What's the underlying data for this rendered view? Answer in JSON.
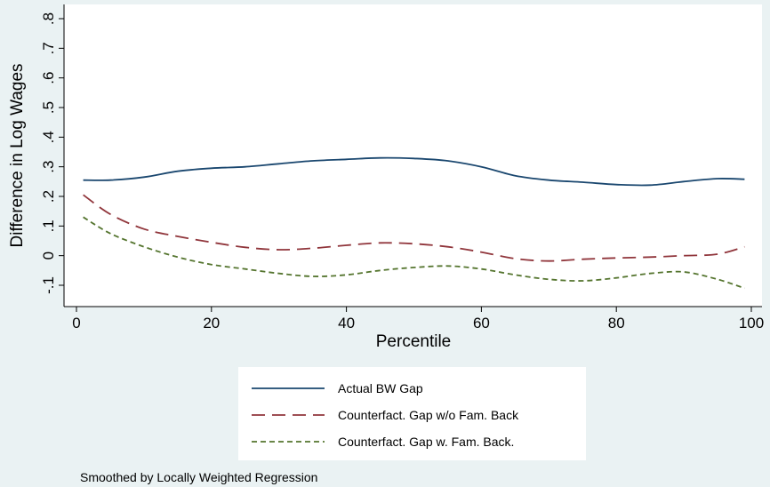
{
  "chart_data": {
    "type": "line",
    "title": "",
    "xlabel": "Percentile",
    "ylabel": "Difference in Log Wages",
    "xlim": [
      0,
      100
    ],
    "ylim": [
      -0.1,
      0.8
    ],
    "xticks": [
      0,
      20,
      40,
      60,
      80,
      100
    ],
    "yticks": [
      -0.1,
      0,
      0.1,
      0.2,
      0.3,
      0.4,
      0.5,
      0.6,
      0.7,
      0.8
    ],
    "ytick_labels": [
      "-.1",
      "0",
      ".1",
      ".2",
      ".3",
      ".4",
      ".5",
      ".6",
      ".7",
      ".8"
    ],
    "grid": false,
    "legend_position": "bottom",
    "note": "Smoothed by Locally Weighted Regression",
    "series": [
      {
        "name": "Actual BW Gap",
        "color": "#1a476f",
        "dash": "solid",
        "x": [
          1,
          5,
          10,
          15,
          20,
          25,
          30,
          35,
          40,
          45,
          50,
          55,
          60,
          65,
          70,
          75,
          80,
          85,
          90,
          95,
          99
        ],
        "y": [
          0.255,
          0.255,
          0.265,
          0.285,
          0.295,
          0.3,
          0.31,
          0.32,
          0.325,
          0.33,
          0.328,
          0.32,
          0.3,
          0.27,
          0.255,
          0.248,
          0.24,
          0.238,
          0.25,
          0.26,
          0.258
        ]
      },
      {
        "name": "Counterfact. Gap w/o Fam. Back",
        "color": "#90353b",
        "dash": "long-dash",
        "x": [
          1,
          5,
          10,
          15,
          20,
          25,
          30,
          35,
          40,
          45,
          50,
          55,
          60,
          65,
          70,
          75,
          80,
          85,
          90,
          95,
          99
        ],
        "y": [
          0.205,
          0.14,
          0.09,
          0.065,
          0.045,
          0.028,
          0.02,
          0.025,
          0.035,
          0.043,
          0.04,
          0.03,
          0.012,
          -0.01,
          -0.018,
          -0.012,
          -0.008,
          -0.005,
          0.0,
          0.005,
          0.03
        ]
      },
      {
        "name": "Counterfact. Gap w. Fam. Back.",
        "color": "#55752f",
        "dash": "short-dash",
        "x": [
          1,
          5,
          10,
          15,
          20,
          25,
          30,
          35,
          40,
          45,
          50,
          55,
          60,
          65,
          70,
          75,
          80,
          85,
          90,
          95,
          99
        ],
        "y": [
          0.13,
          0.075,
          0.03,
          -0.005,
          -0.03,
          -0.045,
          -0.06,
          -0.07,
          -0.065,
          -0.05,
          -0.04,
          -0.035,
          -0.045,
          -0.065,
          -0.08,
          -0.085,
          -0.075,
          -0.06,
          -0.055,
          -0.08,
          -0.11
        ]
      }
    ]
  }
}
